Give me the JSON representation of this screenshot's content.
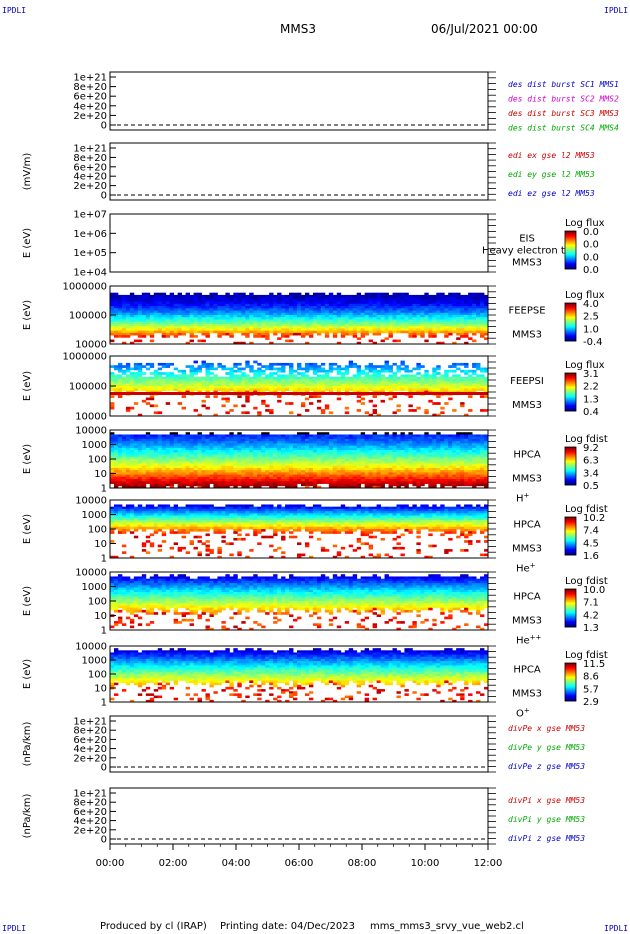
{
  "header": {
    "mission": "MMS3",
    "date": "06/Jul/2021 00:00"
  },
  "corner_labels": [
    "IPDLI",
    "IPDLI",
    "IPDLI",
    "IPDLI"
  ],
  "footer": {
    "produced": "Produced by cl (IRAP)",
    "printed": "Printing date: 04/Dec/2023",
    "script": "mms_mms3_srvy_vue_web2.cl"
  },
  "chart_data": [
    {
      "type": "line",
      "id": "p1",
      "ylabel": "",
      "yticks": [
        "1e+21",
        "8e+20",
        "6e+20",
        "4e+20",
        "2e+20",
        "0"
      ],
      "legend": [
        {
          "text": "des dist burst SC1 MMS1",
          "color": "#0000cc"
        },
        {
          "text": "des dist burst SC2 MMS2",
          "color": "#cc00cc"
        },
        {
          "text": "des dist burst SC3 MMS3",
          "color": "#cc0000"
        },
        {
          "text": "des dist burst SC4 MMS4",
          "color": "#00aa00"
        }
      ]
    },
    {
      "type": "line",
      "id": "p2",
      "ylabel": "(mV/m)",
      "yticks": [
        "1e+21",
        "8e+20",
        "6e+20",
        "4e+20",
        "2e+20",
        "0"
      ],
      "legend": [
        {
          "text": "edi ex gse l2 MM53",
          "color": "#cc0000"
        },
        {
          "text": "edi ey gse l2 MM53",
          "color": "#00aa00"
        },
        {
          "text": "edi ez gse l2 MM53",
          "color": "#0000cc"
        }
      ]
    },
    {
      "type": "heatmap",
      "id": "p3",
      "ylabel": "E (eV)",
      "yticks": [
        "1e+07",
        "1e+06",
        "1e+05",
        "1e+04"
      ],
      "empty": true,
      "instrument": [
        "EIS",
        "MMS3"
      ],
      "overlay": "Heavy electron to",
      "cbar_title": "Log flux",
      "cbar_ticks": [
        "0.0",
        "0.0",
        "0.0",
        "0.0"
      ]
    },
    {
      "type": "heatmap",
      "id": "p4",
      "ylabel": "E (eV)",
      "yticks": [
        "1000000",
        "100000",
        "10000"
      ],
      "instrument": [
        "FEEPSE",
        "MMS3"
      ],
      "cbar_title": "Log flux",
      "cbar_ticks": [
        "4.0",
        "2.5",
        "1.0",
        "-0.4"
      ]
    },
    {
      "type": "heatmap",
      "id": "p5",
      "ylabel": "E (eV)",
      "yticks": [
        "1000000",
        "100000",
        "10000"
      ],
      "instrument": [
        "FEEPSI",
        "MMS3"
      ],
      "cbar_title": "Log flux",
      "cbar_ticks": [
        "3.1",
        "2.2",
        "1.3",
        "0.4"
      ]
    },
    {
      "type": "heatmap",
      "id": "p6",
      "ylabel": "E (eV)",
      "yticks": [
        "10000",
        "1000",
        "100",
        "10",
        "1"
      ],
      "instrument": [
        "HPCA",
        "MMS3"
      ],
      "species": "H",
      "sup": "+",
      "cbar_title": "Log fdist",
      "cbar_ticks": [
        "9.2",
        "6.3",
        "3.4",
        "0.5"
      ]
    },
    {
      "type": "heatmap",
      "id": "p7",
      "ylabel": "E (eV)",
      "yticks": [
        "10000",
        "1000",
        "100",
        "10",
        "1"
      ],
      "instrument": [
        "HPCA",
        "MMS3"
      ],
      "species": "He",
      "sup": "+",
      "cbar_title": "Log fdist",
      "cbar_ticks": [
        "10.2",
        "7.4",
        "4.5",
        "1.6"
      ]
    },
    {
      "type": "heatmap",
      "id": "p8",
      "ylabel": "E (eV)",
      "yticks": [
        "10000",
        "1000",
        "100",
        "10",
        "1"
      ],
      "instrument": [
        "HPCA",
        "MMS3"
      ],
      "species": "He",
      "sup": "++",
      "cbar_title": "Log fdist",
      "cbar_ticks": [
        "10.0",
        "7.1",
        "4.2",
        "1.3"
      ]
    },
    {
      "type": "heatmap",
      "id": "p9",
      "ylabel": "E (eV)",
      "yticks": [
        "10000",
        "1000",
        "100",
        "10",
        "1"
      ],
      "instrument": [
        "HPCA",
        "MMS3"
      ],
      "species": "O",
      "sup": "+",
      "cbar_title": "Log fdist",
      "cbar_ticks": [
        "11.5",
        "8.6",
        "5.7",
        "2.9"
      ]
    },
    {
      "type": "line",
      "id": "p10",
      "ylabel": "(nPa/km)",
      "yticks": [
        "1e+21",
        "8e+20",
        "6e+20",
        "4e+20",
        "2e+20",
        "0"
      ],
      "legend": [
        {
          "text": "divPe x gse MM53",
          "color": "#cc0000"
        },
        {
          "text": "divPe y gse MM53",
          "color": "#00aa00"
        },
        {
          "text": "divPe z gse MM53",
          "color": "#0000cc"
        }
      ]
    },
    {
      "type": "line",
      "id": "p11",
      "ylabel": "(nPa/km)",
      "yticks": [
        "1e+21",
        "8e+20",
        "6e+20",
        "4e+20",
        "2e+20",
        "0"
      ],
      "legend": [
        {
          "text": "divPi x gse MM53",
          "color": "#cc0000"
        },
        {
          "text": "divPi y gse MM53",
          "color": "#00aa00"
        },
        {
          "text": "divPi z gse MM53",
          "color": "#0000cc"
        }
      ]
    }
  ],
  "time_axis": [
    "00:00",
    "02:00",
    "04:00",
    "06:00",
    "08:00",
    "10:00",
    "12:00"
  ]
}
